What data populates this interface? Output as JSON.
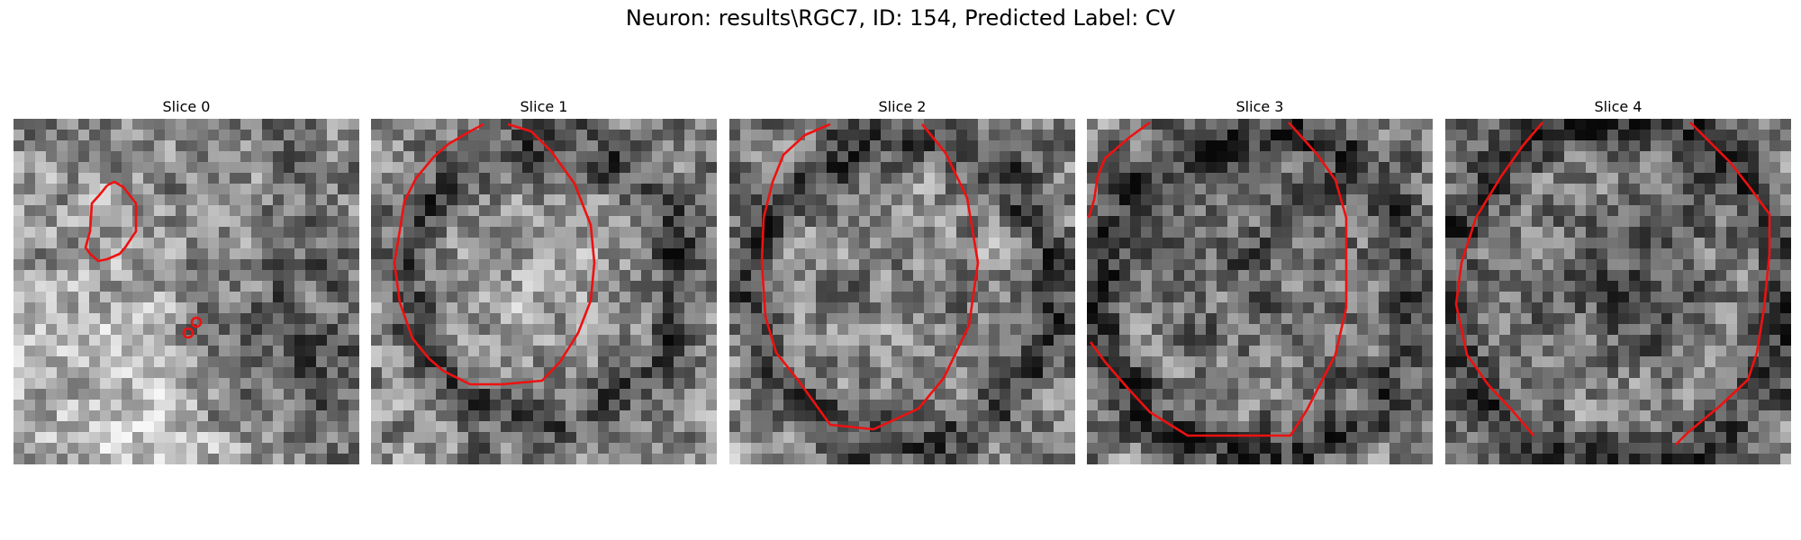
{
  "figure": {
    "title": "Neuron: results\\RGC7, ID: 154, Predicted Label: CV"
  },
  "style": {
    "contour_color": "#ee1111",
    "colormap": "grayscale"
  },
  "panels": [
    {
      "label": "Slice 0"
    },
    {
      "label": "Slice 1"
    },
    {
      "label": "Slice 2"
    },
    {
      "label": "Slice 3"
    },
    {
      "label": "Slice 4"
    }
  ]
}
